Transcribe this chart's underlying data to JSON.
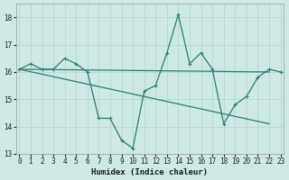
{
  "xlabel": "Humidex (Indice chaleur)",
  "background_color": "#cde8e5",
  "grid_color": "#b8d5d2",
  "line_color": "#2e7d6e",
  "x_values": [
    0,
    1,
    2,
    3,
    4,
    5,
    6,
    7,
    8,
    9,
    10,
    11,
    12,
    13,
    14,
    15,
    16,
    17,
    18,
    19,
    20,
    21,
    22,
    23
  ],
  "series1": [
    16.1,
    16.3,
    16.1,
    16.1,
    16.5,
    16.3,
    16.0,
    14.3,
    14.3,
    13.5,
    13.2,
    15.3,
    15.5,
    16.7,
    18.1,
    16.3,
    16.7,
    16.1,
    14.1,
    14.8,
    15.1,
    15.8,
    16.1,
    16.0
  ],
  "series2_x": [
    0,
    22
  ],
  "series2_y": [
    16.1,
    16.0
  ],
  "series3_x": [
    0,
    22
  ],
  "series3_y": [
    16.1,
    14.1
  ],
  "ylim": [
    13.0,
    18.5
  ],
  "xlim": [
    -0.3,
    23.3
  ],
  "yticks": [
    13,
    14,
    15,
    16,
    17,
    18
  ],
  "xticks": [
    0,
    1,
    2,
    3,
    4,
    5,
    6,
    7,
    8,
    9,
    10,
    11,
    12,
    13,
    14,
    15,
    16,
    17,
    18,
    19,
    20,
    21,
    22,
    23
  ],
  "xlabel_fontsize": 6.5,
  "tick_fontsize": 5.5
}
